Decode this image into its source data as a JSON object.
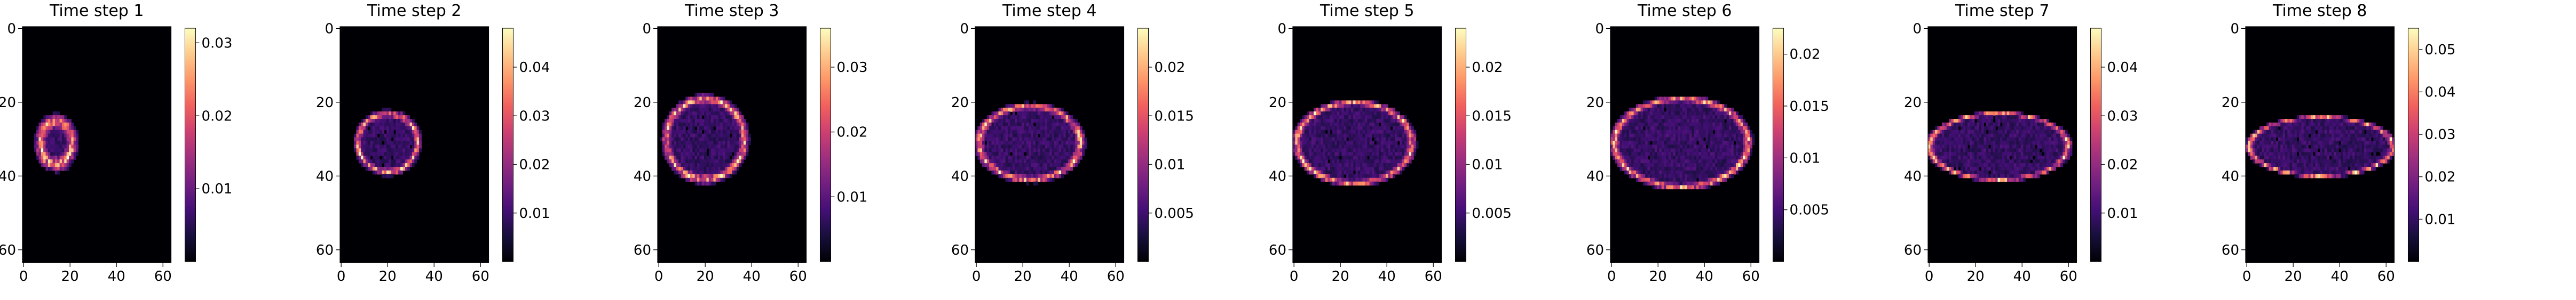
{
  "chart_data": [
    {
      "type": "heatmap",
      "title": "Time step 1",
      "x_ticks": [
        0,
        20,
        40,
        60
      ],
      "y_ticks": [
        0,
        20,
        40,
        60
      ],
      "xlim": [
        0,
        64
      ],
      "ylim": [
        64,
        0
      ],
      "colormap": "magma",
      "colorbar": {
        "range": [
          0,
          0.032
        ],
        "ticks": [
          0.01,
          0.02,
          0.03
        ]
      },
      "grid": false
    },
    {
      "type": "heatmap",
      "title": "Time step 2",
      "x_ticks": [
        0,
        20,
        40,
        60
      ],
      "y_ticks": [
        0,
        20,
        40,
        60
      ],
      "xlim": [
        0,
        64
      ],
      "ylim": [
        64,
        0
      ],
      "colormap": "magma",
      "colorbar": {
        "range": [
          0,
          0.048
        ],
        "ticks": [
          0.01,
          0.02,
          0.03,
          0.04
        ]
      },
      "grid": false
    },
    {
      "type": "heatmap",
      "title": "Time step 3",
      "x_ticks": [
        0,
        20,
        40,
        60
      ],
      "y_ticks": [
        0,
        20,
        40,
        60
      ],
      "xlim": [
        0,
        64
      ],
      "ylim": [
        64,
        0
      ],
      "colormap": "magma",
      "colorbar": {
        "range": [
          0,
          0.036
        ],
        "ticks": [
          0.01,
          0.02,
          0.03
        ]
      },
      "grid": false
    },
    {
      "type": "heatmap",
      "title": "Time step 4",
      "x_ticks": [
        0,
        20,
        40,
        60
      ],
      "y_ticks": [
        0,
        20,
        40,
        60
      ],
      "xlim": [
        0,
        64
      ],
      "ylim": [
        64,
        0
      ],
      "colormap": "magma",
      "colorbar": {
        "range": [
          0,
          0.024
        ],
        "ticks": [
          0.005,
          0.01,
          0.015,
          0.02
        ]
      },
      "grid": false
    },
    {
      "type": "heatmap",
      "title": "Time step 5",
      "x_ticks": [
        0,
        20,
        40,
        60
      ],
      "y_ticks": [
        0,
        20,
        40,
        60
      ],
      "xlim": [
        0,
        64
      ],
      "ylim": [
        64,
        0
      ],
      "colormap": "magma",
      "colorbar": {
        "range": [
          0,
          0.024
        ],
        "ticks": [
          0.005,
          0.01,
          0.015,
          0.02
        ]
      },
      "grid": false
    },
    {
      "type": "heatmap",
      "title": "Time step 6",
      "x_ticks": [
        0,
        20,
        40,
        60
      ],
      "y_ticks": [
        0,
        20,
        40,
        60
      ],
      "xlim": [
        0,
        64
      ],
      "ylim": [
        64,
        0
      ],
      "colormap": "magma",
      "colorbar": {
        "range": [
          0,
          0.0225
        ],
        "ticks": [
          0.005,
          0.01,
          0.015,
          0.02
        ]
      },
      "grid": false
    },
    {
      "type": "heatmap",
      "title": "Time step 7",
      "x_ticks": [
        0,
        20,
        40,
        60
      ],
      "y_ticks": [
        0,
        20,
        40,
        60
      ],
      "xlim": [
        0,
        64
      ],
      "ylim": [
        64,
        0
      ],
      "colormap": "magma",
      "colorbar": {
        "range": [
          0,
          0.048
        ],
        "ticks": [
          0.01,
          0.02,
          0.03,
          0.04
        ]
      },
      "grid": false
    },
    {
      "type": "heatmap",
      "title": "Time step 8",
      "x_ticks": [
        0,
        20,
        40,
        60
      ],
      "y_ticks": [
        0,
        20,
        40,
        60
      ],
      "xlim": [
        0,
        64
      ],
      "ylim": [
        64,
        0
      ],
      "colormap": "magma",
      "colorbar": {
        "range": [
          0,
          0.055
        ],
        "ticks": [
          0.01,
          0.02,
          0.03,
          0.04,
          0.05
        ]
      },
      "grid": false
    }
  ],
  "colors": {
    "colormap_stops": [
      "#000004",
      "#180f3d",
      "#440f76",
      "#721f81",
      "#9e2f7f",
      "#cd4071",
      "#f1605d",
      "#fd9668",
      "#feca8d",
      "#fcfdbf"
    ],
    "background": "#ffffff",
    "axis": "#000000"
  }
}
